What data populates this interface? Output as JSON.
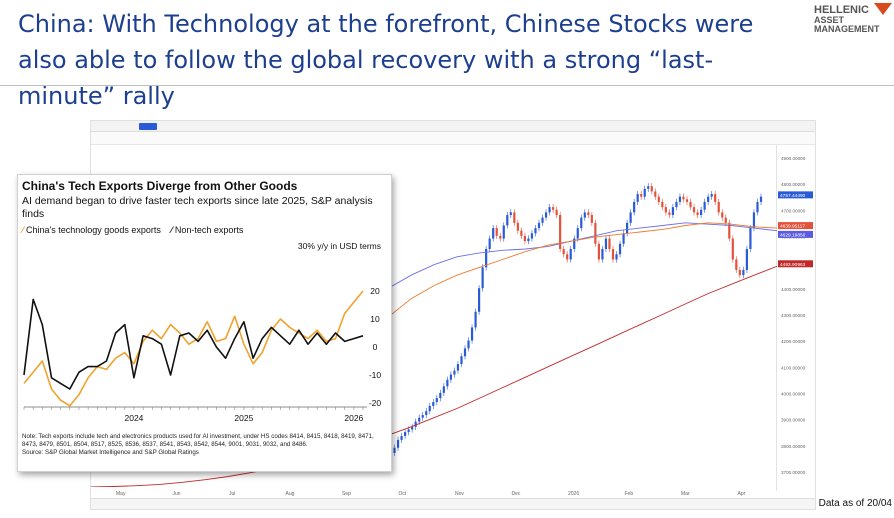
{
  "slide": {
    "title": "China: With Technology at the forefront, Chinese Stocks were also able to follow the global recovery with a strong “last-minute” rally",
    "logo_line1": "HELLENIC",
    "logo_line2": "ASSET",
    "logo_line3": "MANAGEMENT",
    "data_as_of": "Data as of 20/04",
    "accent_color": "#1d3f8f",
    "logo_color": "#d94a1e"
  },
  "chart_data": [
    {
      "type": "line",
      "title": "China's Tech Exports Diverge from Other Goods",
      "subtitle": "AI demand began to drive faster tech exports since late 2025, S&P analysis finds",
      "units_label": "30% y/y in USD terms",
      "ylim": [
        -20,
        30
      ],
      "yticks": [
        20,
        10,
        0,
        -10,
        -20
      ],
      "xticks": [
        "2024",
        "2025",
        "2026"
      ],
      "x_range": [
        "2023-01",
        "2026-02"
      ],
      "legend_placement": "top-left",
      "grid": false,
      "series": [
        {
          "name": "China's technology goods exports",
          "color": "#f0a22e",
          "x": [
            "2023-01",
            "2023-02",
            "2023-03",
            "2023-04",
            "2023-05",
            "2023-06",
            "2023-07",
            "2023-08",
            "2023-09",
            "2023-10",
            "2023-11",
            "2023-12",
            "2024-01",
            "2024-02",
            "2024-03",
            "2024-04",
            "2024-05",
            "2024-06",
            "2024-07",
            "2024-08",
            "2024-09",
            "2024-10",
            "2024-11",
            "2024-12",
            "2025-01",
            "2025-02",
            "2025-03",
            "2025-04",
            "2025-05",
            "2025-06",
            "2025-07",
            "2025-08",
            "2025-09",
            "2025-10",
            "2025-11",
            "2025-12",
            "2026-01",
            "2026-02"
          ],
          "values": [
            -13,
            -9,
            -5,
            -15,
            -19,
            -21,
            -17,
            -11,
            -7,
            -8,
            -4,
            -2,
            -6,
            2,
            6,
            3,
            8,
            5,
            1,
            3,
            9,
            2,
            3,
            11,
            1,
            -6,
            -2,
            6,
            10,
            7,
            5,
            3,
            6,
            2,
            3,
            12,
            16,
            20
          ]
        },
        {
          "name": "Non-tech exports",
          "color": "#111111",
          "x": [
            "2023-01",
            "2023-02",
            "2023-03",
            "2023-04",
            "2023-05",
            "2023-06",
            "2023-07",
            "2023-08",
            "2023-09",
            "2023-10",
            "2023-11",
            "2023-12",
            "2024-01",
            "2024-02",
            "2024-03",
            "2024-04",
            "2024-05",
            "2024-06",
            "2024-07",
            "2024-08",
            "2024-09",
            "2024-10",
            "2024-11",
            "2024-12",
            "2025-01",
            "2025-02",
            "2025-03",
            "2025-04",
            "2025-05",
            "2025-06",
            "2025-07",
            "2025-08",
            "2025-09",
            "2025-10",
            "2025-11",
            "2025-12",
            "2026-01",
            "2026-02"
          ],
          "values": [
            -10,
            17,
            8,
            -11,
            -13,
            -15,
            -9,
            -7,
            -7,
            -5,
            5,
            8,
            -11,
            4,
            3,
            1,
            -10,
            4,
            5,
            2,
            6,
            0,
            -4,
            3,
            9,
            -4,
            3,
            7,
            4,
            1,
            6,
            1,
            5,
            1,
            5,
            2,
            3,
            4
          ]
        }
      ],
      "note": "Note: Tech exports include tech and electronics products used for AI investment, under HS codes 8414, 8415, 8418, 8419, 8471, 8473, 8479, 8501, 8504, 8517, 8525, 8536, 8537, 8541, 8543, 8542, 8544, 9001, 9031, 9032, and 8486.",
      "source": "Source: S&P Global Market Intelligence and S&P Global Ratings"
    },
    {
      "type": "line",
      "title": "",
      "price_axis_ticks": [
        "4900.00000",
        "4800.00000",
        "4700.00000",
        "4600.00000",
        "4500.00000",
        "4400.00000",
        "4300.00000",
        "4200.00000",
        "4100.00000",
        "4000.00000",
        "3900.00000",
        "3800.00000",
        "3700.00000"
      ],
      "price_labels": [
        {
          "value": "4757.44490",
          "color": "#2a5bd7"
        },
        {
          "value": "4639.95117",
          "color": "#e3523a"
        },
        {
          "value": "4629.19856",
          "color": "#5b5ce0"
        },
        {
          "value": "4493.90963",
          "color": "#c22a2a"
        }
      ],
      "month_labels": [
        "May",
        "Jun",
        "Jul",
        "Aug",
        "Sep",
        "Oct",
        "Nov",
        "Dec",
        "2026",
        "Feb",
        "Mar",
        "Apr"
      ],
      "ylim": [
        3650,
        4950
      ],
      "series": [
        {
          "name": "CSI 300 daily candles",
          "color": "#2a5bd7",
          "down_color": "#e3523a",
          "values": [
            3780,
            3800,
            3830,
            3845,
            3860,
            3870,
            3880,
            3900,
            3915,
            3925,
            3940,
            3960,
            3975,
            3990,
            4010,
            4035,
            4060,
            4080,
            4095,
            4120,
            4150,
            4180,
            4210,
            4260,
            4320,
            4410,
            4490,
            4560,
            4600,
            4640,
            4610,
            4600,
            4650,
            4690,
            4700,
            4660,
            4630,
            4610,
            4590,
            4600,
            4620,
            4640,
            4660,
            4680,
            4700,
            4720,
            4710,
            4690,
            4560,
            4540,
            4520,
            4560,
            4600,
            4640,
            4680,
            4700,
            4690,
            4660,
            4580,
            4520,
            4560,
            4600,
            4560,
            4520,
            4540,
            4580,
            4620,
            4660,
            4700,
            4740,
            4770,
            4760,
            4790,
            4800,
            4780,
            4760,
            4740,
            4720,
            4700,
            4690,
            4720,
            4740,
            4760,
            4750,
            4740,
            4720,
            4700,
            4690,
            4710,
            4740,
            4760,
            4770,
            4740,
            4700,
            4680,
            4660,
            4600,
            4520,
            4480,
            4460,
            4480,
            4560,
            4640,
            4700,
            4740,
            4760
          ]
        },
        {
          "name": "MA 50",
          "color": "#6b6fe6",
          "values": [
            3720,
            3730,
            3745,
            3760,
            3790,
            3830,
            3880,
            3940,
            4010,
            4090,
            4180,
            4260,
            4340,
            4410,
            4460,
            4500,
            4530,
            4545,
            4555,
            4560,
            4570,
            4590,
            4610,
            4630,
            4640,
            4650,
            4660,
            4655,
            4650,
            4640,
            4630
          ]
        },
        {
          "name": "MA 100",
          "color": "#f07a2c",
          "values": [
            3720,
            3722,
            3730,
            3745,
            3765,
            3790,
            3825,
            3870,
            3925,
            3990,
            4060,
            4140,
            4220,
            4300,
            4370,
            4420,
            4460,
            4490,
            4520,
            4550,
            4575,
            4590,
            4605,
            4615,
            4625,
            4635,
            4650,
            4660,
            4655,
            4645,
            4640
          ]
        },
        {
          "name": "MA 200",
          "color": "#c22a2a",
          "values": [
            3650,
            3652,
            3655,
            3660,
            3668,
            3678,
            3690,
            3705,
            3722,
            3742,
            3765,
            3790,
            3818,
            3848,
            3880,
            3915,
            3950,
            3990,
            4030,
            4070,
            4110,
            4150,
            4190,
            4230,
            4270,
            4310,
            4350,
            4390,
            4425,
            4460,
            4494
          ]
        }
      ]
    }
  ]
}
